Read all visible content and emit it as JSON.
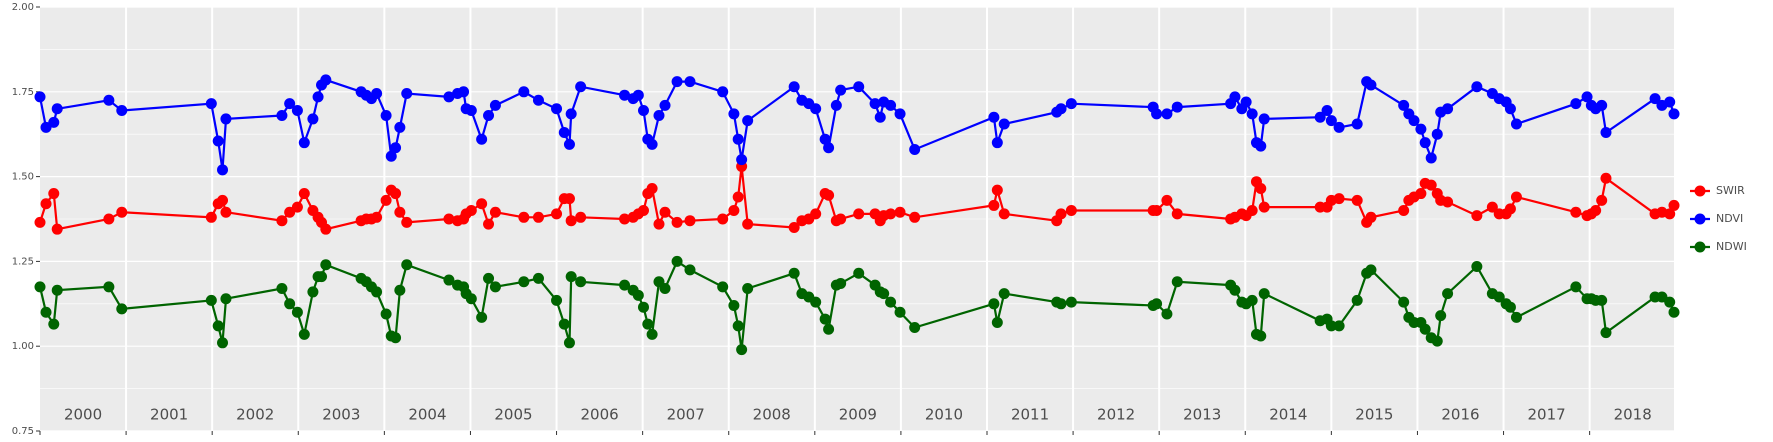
{
  "chart_data": {
    "type": "line",
    "x": [
      2000.0,
      2000.07,
      2000.16,
      2000.2,
      2000.8,
      2000.95,
      2001.99,
      2002.07,
      2002.12,
      2002.16,
      2002.81,
      2002.9,
      2002.99,
      2003.07,
      2003.17,
      2003.23,
      2003.27,
      2003.32,
      2003.73,
      2003.79,
      2003.85,
      2003.91,
      2004.02,
      2004.08,
      2004.13,
      2004.18,
      2004.26,
      2004.75,
      2004.85,
      2004.92,
      2004.95,
      2005.01,
      2005.13,
      2005.21,
      2005.29,
      2005.62,
      2005.79,
      2006.0,
      2006.09,
      2006.15,
      2006.17,
      2006.28,
      2006.79,
      2006.89,
      2006.95,
      2007.01,
      2007.06,
      2007.11,
      2007.19,
      2007.26,
      2007.4,
      2007.55,
      2007.93,
      2008.06,
      2008.11,
      2008.15,
      2008.22,
      2008.76,
      2008.85,
      2008.93,
      2009.01,
      2009.12,
      2009.16,
      2009.25,
      2009.3,
      2009.51,
      2009.7,
      2009.76,
      2009.8,
      2009.88,
      2009.99,
      2010.16,
      2011.08,
      2011.12,
      2011.2,
      2011.81,
      2011.86,
      2011.98,
      2012.93,
      2012.97,
      2013.09,
      2013.21,
      2013.83,
      2013.88,
      2013.96,
      2014.01,
      2014.08,
      2014.13,
      2014.18,
      2014.22,
      2014.87,
      2014.95,
      2015.0,
      2015.09,
      2015.3,
      2015.41,
      2015.46,
      2015.84,
      2015.9,
      2015.96,
      2016.04,
      2016.09,
      2016.16,
      2016.23,
      2016.27,
      2016.35,
      2016.69,
      2016.87,
      2016.95,
      2017.03,
      2017.08,
      2017.15,
      2017.84,
      2017.97,
      2018.02,
      2018.07,
      2018.14,
      2018.19,
      2018.76,
      2018.84,
      2018.93,
      2018.98
    ],
    "series": [
      {
        "name": "SWIR",
        "color": "#ff0000",
        "values": [
          1.365,
          1.42,
          1.45,
          1.345,
          1.375,
          1.395,
          1.38,
          1.42,
          1.43,
          1.395,
          1.37,
          1.395,
          1.41,
          1.45,
          1.4,
          1.38,
          1.365,
          1.345,
          1.37,
          1.375,
          1.375,
          1.38,
          1.43,
          1.46,
          1.45,
          1.395,
          1.365,
          1.375,
          1.37,
          1.375,
          1.39,
          1.4,
          1.42,
          1.36,
          1.395,
          1.38,
          1.38,
          1.39,
          1.435,
          1.435,
          1.37,
          1.38,
          1.375,
          1.38,
          1.39,
          1.4,
          1.45,
          1.465,
          1.36,
          1.395,
          1.365,
          1.37,
          1.375,
          1.4,
          1.44,
          1.53,
          1.36,
          1.35,
          1.37,
          1.375,
          1.39,
          1.45,
          1.445,
          1.37,
          1.375,
          1.39,
          1.39,
          1.37,
          1.385,
          1.39,
          1.395,
          1.38,
          1.415,
          1.46,
          1.39,
          1.37,
          1.39,
          1.4,
          1.4,
          1.4,
          1.43,
          1.39,
          1.375,
          1.38,
          1.39,
          1.385,
          1.4,
          1.485,
          1.465,
          1.41,
          1.41,
          1.41,
          1.43,
          1.435,
          1.43,
          1.365,
          1.38,
          1.4,
          1.43,
          1.44,
          1.45,
          1.48,
          1.475,
          1.45,
          1.43,
          1.425,
          1.385,
          1.41,
          1.39,
          1.39,
          1.405,
          1.44,
          1.395,
          1.385,
          1.39,
          1.4,
          1.43,
          1.495,
          1.39,
          1.395,
          1.39,
          1.415
        ]
      },
      {
        "name": "NDVI",
        "color": "#0000ff",
        "values": [
          1.735,
          1.645,
          1.66,
          1.7,
          1.725,
          1.695,
          1.715,
          1.605,
          1.52,
          1.67,
          1.68,
          1.715,
          1.695,
          1.6,
          1.67,
          1.735,
          1.77,
          1.785,
          1.75,
          1.74,
          1.73,
          1.745,
          1.68,
          1.56,
          1.585,
          1.645,
          1.745,
          1.735,
          1.745,
          1.75,
          1.7,
          1.695,
          1.61,
          1.68,
          1.71,
          1.75,
          1.725,
          1.7,
          1.63,
          1.595,
          1.685,
          1.765,
          1.74,
          1.73,
          1.74,
          1.695,
          1.61,
          1.595,
          1.68,
          1.71,
          1.78,
          1.78,
          1.75,
          1.685,
          1.61,
          1.55,
          1.665,
          1.765,
          1.725,
          1.715,
          1.7,
          1.61,
          1.585,
          1.71,
          1.755,
          1.765,
          1.715,
          1.675,
          1.72,
          1.71,
          1.685,
          1.58,
          1.675,
          1.6,
          1.655,
          1.69,
          1.7,
          1.715,
          1.705,
          1.685,
          1.685,
          1.705,
          1.715,
          1.735,
          1.7,
          1.72,
          1.685,
          1.6,
          1.59,
          1.67,
          1.675,
          1.695,
          1.665,
          1.645,
          1.655,
          1.78,
          1.77,
          1.71,
          1.685,
          1.665,
          1.64,
          1.6,
          1.555,
          1.625,
          1.69,
          1.7,
          1.765,
          1.745,
          1.73,
          1.72,
          1.7,
          1.655,
          1.715,
          1.735,
          1.71,
          1.7,
          1.71,
          1.63,
          1.73,
          1.71,
          1.72,
          1.685
        ]
      },
      {
        "name": "NDWI",
        "color": "#006400",
        "values": [
          1.175,
          1.1,
          1.065,
          1.165,
          1.175,
          1.11,
          1.135,
          1.06,
          1.01,
          1.14,
          1.17,
          1.125,
          1.1,
          1.035,
          1.16,
          1.205,
          1.205,
          1.24,
          1.2,
          1.19,
          1.175,
          1.16,
          1.095,
          1.03,
          1.025,
          1.165,
          1.24,
          1.195,
          1.18,
          1.175,
          1.155,
          1.14,
          1.085,
          1.2,
          1.175,
          1.19,
          1.2,
          1.135,
          1.065,
          1.01,
          1.205,
          1.19,
          1.18,
          1.165,
          1.15,
          1.115,
          1.065,
          1.035,
          1.19,
          1.17,
          1.25,
          1.225,
          1.175,
          1.12,
          1.06,
          0.99,
          1.17,
          1.215,
          1.155,
          1.145,
          1.13,
          1.08,
          1.05,
          1.18,
          1.185,
          1.215,
          1.18,
          1.16,
          1.155,
          1.13,
          1.1,
          1.055,
          1.125,
          1.07,
          1.155,
          1.13,
          1.125,
          1.13,
          1.12,
          1.125,
          1.095,
          1.19,
          1.18,
          1.165,
          1.13,
          1.125,
          1.135,
          1.035,
          1.03,
          1.155,
          1.075,
          1.08,
          1.06,
          1.06,
          1.135,
          1.215,
          1.225,
          1.13,
          1.085,
          1.07,
          1.07,
          1.05,
          1.025,
          1.015,
          1.09,
          1.155,
          1.235,
          1.155,
          1.145,
          1.125,
          1.115,
          1.085,
          1.175,
          1.14,
          1.14,
          1.135,
          1.135,
          1.04,
          1.145,
          1.145,
          1.13,
          1.1
        ]
      }
    ],
    "xlim": [
      2000,
      2018.98
    ],
    "xticks": [
      {
        "value": 2000,
        "label": "2000"
      },
      {
        "value": 2001,
        "label": "2001"
      },
      {
        "value": 2002,
        "label": "2002"
      },
      {
        "value": 2003,
        "label": "2003"
      },
      {
        "value": 2004,
        "label": "2004"
      },
      {
        "value": 2005,
        "label": "2005"
      },
      {
        "value": 2006,
        "label": "2006"
      },
      {
        "value": 2007,
        "label": "2007"
      },
      {
        "value": 2008,
        "label": "2008"
      },
      {
        "value": 2009,
        "label": "2009"
      },
      {
        "value": 2010,
        "label": "2010"
      },
      {
        "value": 2011,
        "label": "2011"
      },
      {
        "value": 2012,
        "label": "2012"
      },
      {
        "value": 2013,
        "label": "2013"
      },
      {
        "value": 2014,
        "label": "2014"
      },
      {
        "value": 2015,
        "label": "2015"
      },
      {
        "value": 2016,
        "label": "2016"
      },
      {
        "value": 2017,
        "label": "2017"
      },
      {
        "value": 2018,
        "label": "2018"
      }
    ],
    "ylim": [
      0.75,
      2.0
    ],
    "yticks": [
      {
        "value": 0.75,
        "label": "0.75"
      },
      {
        "value": 1.0,
        "label": "1.00"
      },
      {
        "value": 1.25,
        "label": "1.25"
      },
      {
        "value": 1.5,
        "label": "1.50"
      },
      {
        "value": 1.75,
        "label": "1.75"
      },
      {
        "value": 2.0,
        "label": "2.00"
      }
    ],
    "grid": true,
    "legend": "right"
  }
}
